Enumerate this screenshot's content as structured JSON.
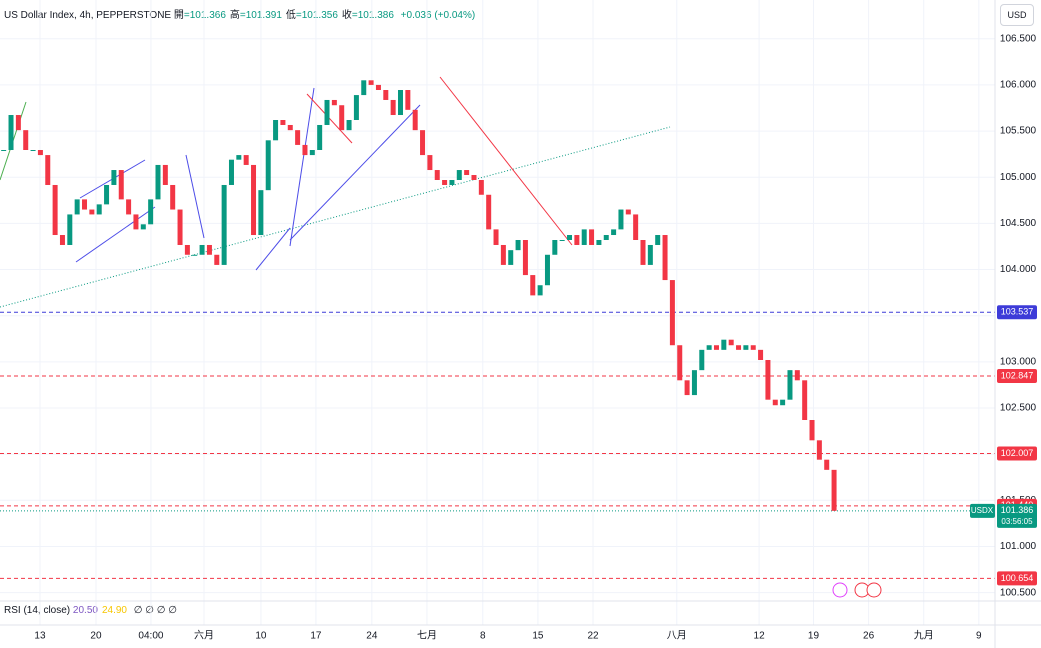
{
  "chart_data": {
    "type": "candlestick",
    "title": "US Dollar Index, 4h, PEPPERSTONE",
    "legend_items": [
      {
        "key": "開",
        "value": "=101.366"
      },
      {
        "key": "高",
        "value": "=101.391"
      },
      {
        "key": "低",
        "value": "=101.356"
      },
      {
        "key": "收",
        "value": "=101.386"
      }
    ],
    "change": "+0.036 (+0.04%)",
    "currency": "USD",
    "up_color": "#089981",
    "down_color": "#f23645",
    "close": [
      105.295,
      105.674,
      105.51,
      105.295,
      105.295,
      105.24,
      104.916,
      104.374,
      104.266,
      104.597,
      104.76,
      104.65,
      104.597,
      104.706,
      104.916,
      105.078,
      104.76,
      104.597,
      104.435,
      104.49,
      104.76,
      105.133,
      104.916,
      104.65,
      104.266,
      104.16,
      104.16,
      104.266,
      104.16,
      104.05,
      104.916,
      105.19,
      105.24,
      105.133,
      104.374,
      104.86,
      105.4,
      105.62,
      105.566,
      105.51,
      105.35,
      105.24,
      105.295,
      105.566,
      105.837,
      105.78,
      105.51,
      105.62,
      105.89,
      106.05,
      106.0,
      105.945,
      105.837,
      105.674,
      105.945,
      105.73,
      105.51,
      105.24,
      105.078,
      104.97,
      104.916,
      104.97,
      105.078,
      105.024,
      104.97,
      104.81,
      104.435,
      104.266,
      104.05,
      104.21,
      104.32,
      103.94,
      103.72,
      103.83,
      104.16,
      104.32,
      104.32,
      104.374,
      104.266,
      104.435,
      104.266,
      104.32,
      104.374,
      104.435,
      104.65,
      104.597,
      104.32,
      104.05,
      104.266,
      104.374,
      103.886,
      103.18,
      102.8,
      102.64,
      102.91,
      103.13,
      103.18,
      103.13,
      103.24,
      103.18,
      103.13,
      103.18,
      103.13,
      103.02,
      102.59,
      102.53,
      102.59,
      102.91,
      102.8,
      102.37,
      102.15,
      101.94,
      101.83,
      101.386
    ],
    "xlim": [
      -0.5,
      134.9
    ],
    "xticks": [
      {
        "value": 4.94,
        "label": "13"
      },
      {
        "value": 12.56,
        "label": "20"
      },
      {
        "value": 20.04,
        "label": "04:00"
      },
      {
        "value": 27.26,
        "label": "六月"
      },
      {
        "value": 35.01,
        "label": "10"
      },
      {
        "value": 42.49,
        "label": "17"
      },
      {
        "value": 50.1,
        "label": "24"
      },
      {
        "value": 57.6,
        "label": "七月"
      },
      {
        "value": 65.2,
        "label": "8"
      },
      {
        "value": 72.7,
        "label": "15"
      },
      {
        "value": 80.2,
        "label": "22"
      },
      {
        "value": 91.6,
        "label": "八月"
      },
      {
        "value": 102.8,
        "label": "12"
      },
      {
        "value": 110.2,
        "label": "19"
      },
      {
        "value": 117.7,
        "label": "26"
      },
      {
        "value": 125.2,
        "label": "九月"
      },
      {
        "value": 132.7,
        "label": "9"
      }
    ],
    "ylim": [
      100.42,
      106.92
    ],
    "yticks": [
      {
        "value": 100.5,
        "label": "100.500"
      },
      {
        "value": 101,
        "label": "101.000"
      },
      {
        "value": 101.5,
        "label": "101.500"
      },
      {
        "value": 102,
        "label": "102.000"
      },
      {
        "value": 102.5,
        "label": "102.500"
      },
      {
        "value": 103,
        "label": "103.000"
      },
      {
        "value": 103.5,
        "label": "103.500"
      },
      {
        "value": 104,
        "label": "104.000"
      },
      {
        "value": 104.5,
        "label": "104.500"
      },
      {
        "value": 105,
        "label": "105.000"
      },
      {
        "value": 105.5,
        "label": "105.500"
      },
      {
        "value": 106,
        "label": "106.000"
      },
      {
        "value": 106.5,
        "label": "106.500"
      }
    ],
    "grid": true,
    "levels": [
      {
        "value": 103.537,
        "color": "#3d3bd8"
      },
      {
        "value": 102.847,
        "color": "#f23645"
      },
      {
        "value": 102.007,
        "color": "#f23645"
      },
      {
        "value": 101.44,
        "label": "101.440",
        "color": "#f23645"
      },
      {
        "value": 100.654,
        "color": "#f23645"
      }
    ],
    "current": {
      "name": "USDX",
      "value": 101.386,
      "countdown": "03:56:05",
      "color": "#089981"
    },
    "rsi": {
      "title": "RSI (14, close)",
      "values": [
        20.5,
        24.9
      ],
      "value_labels": [
        "20.50",
        "24.90"
      ],
      "colors": [
        "#7e57c2",
        "#f7c600"
      ],
      "empty": "∅ ∅ ∅ ∅"
    }
  }
}
